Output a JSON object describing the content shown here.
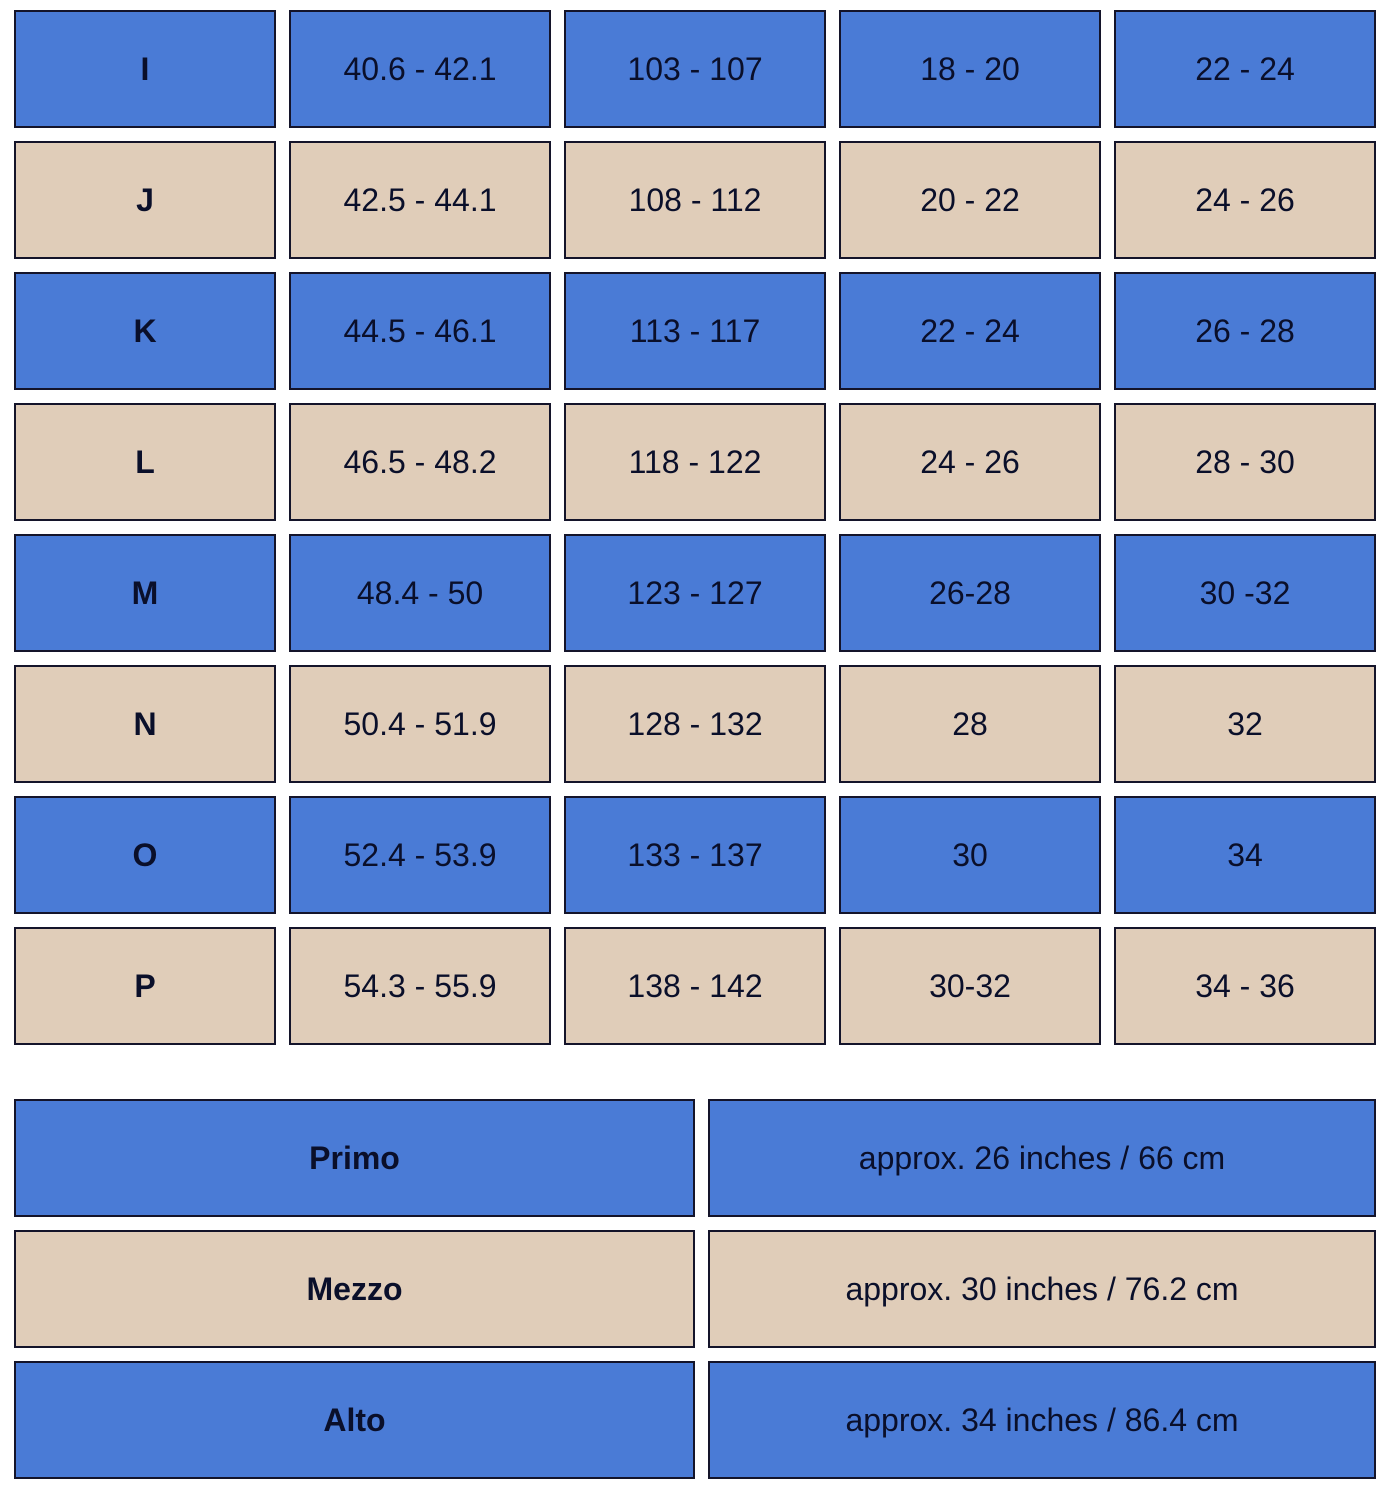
{
  "colors": {
    "row_odd": "#4a7bd6",
    "row_even": "#e0cdb9",
    "border": "#14142a"
  },
  "size_table": {
    "rows": [
      [
        "I",
        "40.6 - 42.1",
        "103 - 107",
        "18 - 20",
        "22 - 24"
      ],
      [
        "J",
        "42.5 - 44.1",
        "108 - 112",
        "20 - 22",
        "24 - 26"
      ],
      [
        "K",
        "44.5 - 46.1",
        "113 - 117",
        "22 - 24",
        "26 - 28"
      ],
      [
        "L",
        "46.5 - 48.2",
        "118 - 122",
        "24 - 26",
        "28 - 30"
      ],
      [
        "M",
        "48.4 - 50",
        "123 - 127",
        "26-28",
        "30 -32"
      ],
      [
        "N",
        "50.4 - 51.9",
        "128 - 132",
        "28",
        "32"
      ],
      [
        "O",
        "52.4 - 53.9",
        "133 - 137",
        "30",
        "34"
      ],
      [
        "P",
        "54.3 - 55.9",
        "138 - 142",
        "30-32",
        "34 - 36"
      ]
    ]
  },
  "length_table": {
    "rows": [
      [
        "Primo",
        "approx. 26 inches / 66 cm"
      ],
      [
        "Mezzo",
        "approx. 30 inches / 76.2 cm"
      ],
      [
        "Alto",
        "approx. 34 inches / 86.4 cm"
      ]
    ]
  }
}
